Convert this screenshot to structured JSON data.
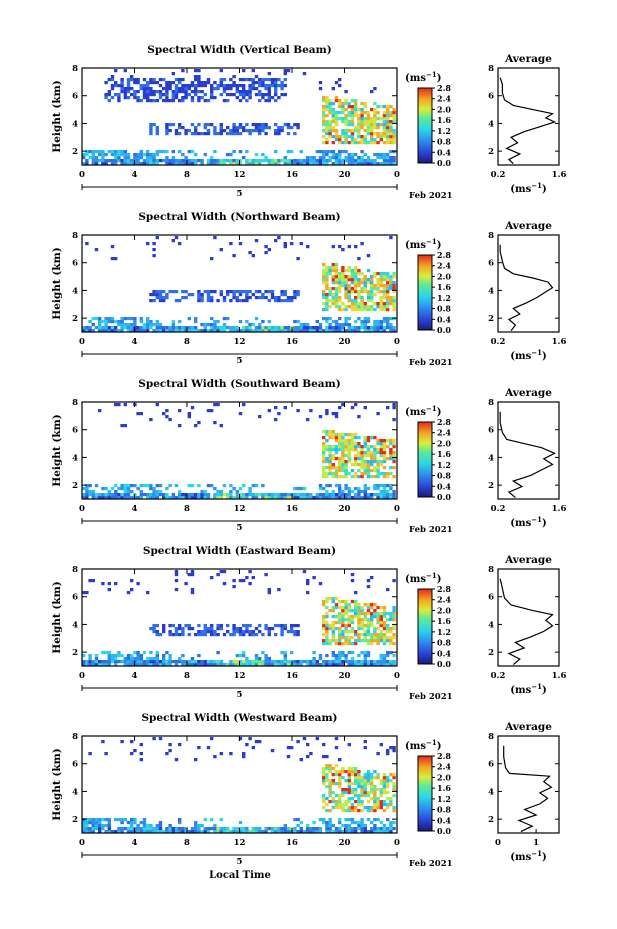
{
  "figure": {
    "footer_label": "Local Time",
    "date_label": "Feb 2021",
    "day_marker": "5",
    "colorbar_unit": "(ms",
    "colorbar_unit_sup": "−1",
    "colorbar_unit_close": ")"
  },
  "chart_data": [
    {
      "type": "heatmap",
      "title": "Spectral Width (Vertical Beam)",
      "ylabel": "Height (km)",
      "x_ticks": [
        "0",
        "4",
        "8",
        "12",
        "16",
        "20",
        "0"
      ],
      "y_ticks": [
        "2",
        "4",
        "6",
        "8"
      ],
      "xlim": [
        0,
        24
      ],
      "ylim": [
        1,
        8
      ],
      "colorbar_ticks": [
        "0.0",
        "0.4",
        "0.8",
        "1.2",
        "1.6",
        "2.0",
        "2.4",
        "2.8"
      ],
      "clim": [
        0,
        2.8
      ],
      "average": {
        "title": "Average",
        "xlabel": "(ms",
        "xlabel_sup": "−1",
        "xlabel_close": ")",
        "x_ticks": [
          "0.2",
          "1.6"
        ],
        "xlim": [
          0.2,
          1.6
        ],
        "y_ticks": [
          "2",
          "4",
          "6",
          "8"
        ],
        "ylim": [
          1,
          8
        ],
        "profile": [
          [
            0.55,
            1.1
          ],
          [
            0.45,
            1.4
          ],
          [
            0.7,
            1.8
          ],
          [
            0.4,
            2.2
          ],
          [
            0.65,
            2.6
          ],
          [
            0.5,
            3.0
          ],
          [
            0.8,
            3.4
          ],
          [
            1.2,
            3.8
          ],
          [
            1.5,
            4.1
          ],
          [
            1.3,
            4.4
          ],
          [
            1.45,
            4.7
          ],
          [
            1.0,
            5.0
          ],
          [
            0.55,
            5.3
          ],
          [
            0.35,
            5.7
          ],
          [
            0.3,
            6.2
          ],
          [
            0.3,
            6.8
          ],
          [
            0.25,
            7.3
          ]
        ]
      }
    },
    {
      "type": "heatmap",
      "title": "Spectral Width (Northward Beam)",
      "ylabel": "Height (km)",
      "x_ticks": [
        "0",
        "4",
        "8",
        "12",
        "16",
        "20",
        "0"
      ],
      "y_ticks": [
        "2",
        "4",
        "6",
        "8"
      ],
      "xlim": [
        0,
        24
      ],
      "ylim": [
        1,
        8
      ],
      "colorbar_ticks": [
        "0.0",
        "0.4",
        "0.8",
        "1.2",
        "1.6",
        "2.0",
        "2.4",
        "2.8"
      ],
      "clim": [
        0,
        2.8
      ],
      "average": {
        "title": "Average",
        "xlabel": "(ms",
        "xlabel_sup": "−1",
        "xlabel_close": ")",
        "x_ticks": [
          "0.2",
          "1.6"
        ],
        "xlim": [
          0.2,
          1.6
        ],
        "y_ticks": [
          "2",
          "4",
          "6",
          "8"
        ],
        "ylim": [
          1,
          8
        ],
        "profile": [
          [
            0.5,
            1.1
          ],
          [
            0.6,
            1.5
          ],
          [
            0.45,
            1.9
          ],
          [
            0.7,
            2.3
          ],
          [
            0.55,
            2.7
          ],
          [
            0.85,
            3.1
          ],
          [
            1.1,
            3.5
          ],
          [
            1.3,
            3.9
          ],
          [
            1.45,
            4.2
          ],
          [
            1.35,
            4.6
          ],
          [
            1.0,
            4.9
          ],
          [
            0.55,
            5.2
          ],
          [
            0.35,
            5.6
          ],
          [
            0.3,
            6.1
          ],
          [
            0.25,
            6.8
          ],
          [
            0.25,
            7.3
          ]
        ]
      }
    },
    {
      "type": "heatmap",
      "title": "Spectral Width (Southward Beam)",
      "ylabel": "Height (km)",
      "x_ticks": [
        "0",
        "4",
        "8",
        "12",
        "16",
        "20",
        "0"
      ],
      "y_ticks": [
        "2",
        "4",
        "6",
        "8"
      ],
      "xlim": [
        0,
        24
      ],
      "ylim": [
        1,
        8
      ],
      "colorbar_ticks": [
        "0.0",
        "0.4",
        "0.8",
        "1.2",
        "1.6",
        "2.0",
        "2.4",
        "2.8"
      ],
      "clim": [
        0,
        2.8
      ],
      "average": {
        "title": "Average",
        "xlabel": "(ms",
        "xlabel_sup": "−1",
        "xlabel_close": ")",
        "x_ticks": [
          "0.2",
          "1.6"
        ],
        "xlim": [
          0.2,
          1.6
        ],
        "y_ticks": [
          "2",
          "4",
          "6",
          "8"
        ],
        "ylim": [
          1,
          8
        ],
        "profile": [
          [
            0.6,
            1.1
          ],
          [
            0.45,
            1.5
          ],
          [
            0.75,
            1.9
          ],
          [
            0.55,
            2.3
          ],
          [
            0.95,
            2.7
          ],
          [
            1.2,
            3.1
          ],
          [
            1.45,
            3.5
          ],
          [
            1.25,
            3.9
          ],
          [
            1.5,
            4.3
          ],
          [
            1.2,
            4.7
          ],
          [
            0.8,
            5.0
          ],
          [
            0.4,
            5.3
          ],
          [
            0.3,
            5.8
          ],
          [
            0.25,
            6.5
          ],
          [
            0.25,
            7.3
          ]
        ]
      }
    },
    {
      "type": "heatmap",
      "title": "Spectral Width (Eastward Beam)",
      "ylabel": "Height (km)",
      "x_ticks": [
        "0",
        "4",
        "8",
        "12",
        "16",
        "20",
        "0"
      ],
      "y_ticks": [
        "2",
        "4",
        "6",
        "8"
      ],
      "xlim": [
        0,
        24
      ],
      "ylim": [
        1,
        8
      ],
      "colorbar_ticks": [
        "0.0",
        "0.4",
        "0.8",
        "1.2",
        "1.6",
        "2.0",
        "2.4",
        "2.8"
      ],
      "clim": [
        0,
        2.8
      ],
      "average": {
        "title": "Average",
        "xlabel": "(ms",
        "xlabel_sup": "−1",
        "xlabel_close": ")",
        "x_ticks": [
          "0.2",
          "1.6"
        ],
        "xlim": [
          0.2,
          1.6
        ],
        "y_ticks": [
          "2",
          "4",
          "6",
          "8"
        ],
        "ylim": [
          1,
          8
        ],
        "profile": [
          [
            0.55,
            1.1
          ],
          [
            0.7,
            1.5
          ],
          [
            0.45,
            1.9
          ],
          [
            0.8,
            2.3
          ],
          [
            0.6,
            2.7
          ],
          [
            0.95,
            3.1
          ],
          [
            1.25,
            3.5
          ],
          [
            1.45,
            3.9
          ],
          [
            1.3,
            4.3
          ],
          [
            1.45,
            4.7
          ],
          [
            1.0,
            5.0
          ],
          [
            0.5,
            5.4
          ],
          [
            0.35,
            5.9
          ],
          [
            0.3,
            6.6
          ],
          [
            0.25,
            7.3
          ]
        ]
      }
    },
    {
      "type": "heatmap",
      "title": "Spectral Width (Westward Beam)",
      "ylabel": "Height (km)",
      "x_ticks": [
        "0",
        "4",
        "8",
        "12",
        "16",
        "20",
        "0"
      ],
      "y_ticks": [
        "2",
        "4",
        "6",
        "8"
      ],
      "xlim": [
        0,
        24
      ],
      "ylim": [
        1,
        8
      ],
      "colorbar_ticks": [
        "0.0",
        "0.4",
        "0.8",
        "1.2",
        "1.6",
        "2.0",
        "2.4",
        "2.8"
      ],
      "clim": [
        0,
        2.8
      ],
      "average": {
        "title": "Average",
        "xlabel": "(ms",
        "xlabel_sup": "−1",
        "xlabel_close": ")",
        "x_ticks": [
          "0",
          "1"
        ],
        "xlim": [
          0,
          1.6
        ],
        "y_ticks": [
          "2",
          "4",
          "6",
          "8"
        ],
        "ylim": [
          1,
          8
        ],
        "profile": [
          [
            0.6,
            1.1
          ],
          [
            0.9,
            1.5
          ],
          [
            0.55,
            1.9
          ],
          [
            1.0,
            2.3
          ],
          [
            0.7,
            2.7
          ],
          [
            1.1,
            3.1
          ],
          [
            1.3,
            3.5
          ],
          [
            1.1,
            3.9
          ],
          [
            1.4,
            4.3
          ],
          [
            1.2,
            4.7
          ],
          [
            1.35,
            5.1
          ],
          [
            0.3,
            5.3
          ],
          [
            0.2,
            5.7
          ],
          [
            0.15,
            6.5
          ],
          [
            0.15,
            7.3
          ]
        ]
      }
    }
  ]
}
